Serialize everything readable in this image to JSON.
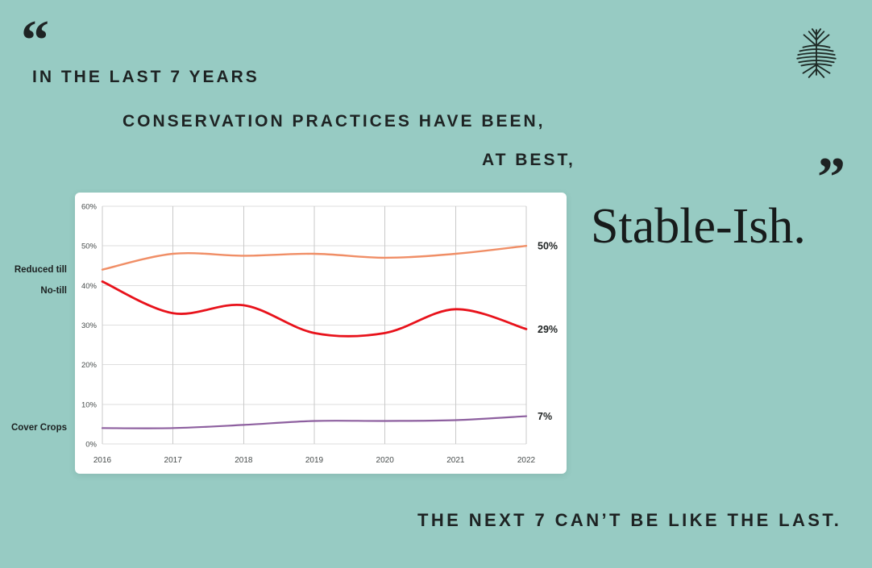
{
  "page": {
    "background_color": "#97cbc3",
    "text_color": "#1e2323"
  },
  "logo": {
    "icon": "tree-with-roots-icon",
    "color": "#1e2a26"
  },
  "quote": {
    "open_mark": "“",
    "close_mark": "”",
    "lines": [
      "IN THE LAST 7 YEARS",
      "CONSERVATION PRACTICES HAVE BEEN,",
      "AT BEST,"
    ],
    "emphasis": "Stable-Ish."
  },
  "footer": {
    "text": "THE NEXT 7 CAN’T BE LIKE THE LAST."
  },
  "chart_data": {
    "type": "line",
    "x": [
      2016,
      2017,
      2018,
      2019,
      2020,
      2021,
      2022
    ],
    "series": [
      {
        "name": "Reduced till",
        "color": "#f08e66",
        "stroke_width": 2.4,
        "values": [
          44,
          48,
          47.5,
          48,
          47,
          48,
          50
        ],
        "end_label": "50%"
      },
      {
        "name": "No-till",
        "color": "#e8121b",
        "stroke_width": 2.8,
        "values": [
          41,
          33,
          35,
          28,
          28,
          34,
          29
        ],
        "end_label": "29%"
      },
      {
        "name": "Cover Crops",
        "color": "#8d5f9f",
        "stroke_width": 2.2,
        "values": [
          4,
          4,
          4.8,
          5.8,
          5.8,
          6,
          7
        ],
        "end_label": "7%"
      }
    ],
    "ylim": [
      0,
      60
    ],
    "yticks": [
      "0%",
      "10%",
      "20%",
      "30%",
      "40%",
      "50%",
      "60%"
    ],
    "grid": true,
    "legend_position": "outside-left",
    "grid_color_h": "#dedede",
    "grid_color_v": "#c9c9c9",
    "tick_color": "#474c4c",
    "end_label_color": "#1f2323",
    "background": "#ffffff"
  }
}
